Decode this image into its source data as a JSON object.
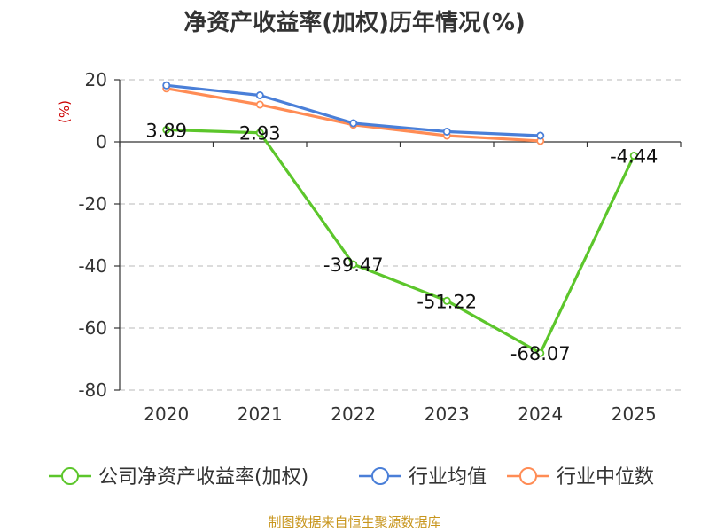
{
  "chart_data": {
    "type": "line",
    "title": "净资产收益率(加权)历年情况(%)",
    "unit_label": "(%)",
    "categories": [
      "2020",
      "2021",
      "2022",
      "2023",
      "2024",
      "2025"
    ],
    "ylim": [
      -80,
      20
    ],
    "yticks": [
      20,
      0,
      -20,
      -40,
      -60,
      -80
    ],
    "ytick_labels": [
      "20",
      "0",
      "-20",
      "-40",
      "-60",
      "-80"
    ],
    "grid": true,
    "legend_position": "bottom",
    "series": [
      {
        "name": "公司净资产收益率(加权)",
        "color": "#5cc62b",
        "values": [
          3.89,
          2.93,
          -39.47,
          -51.22,
          -68.07,
          -4.44
        ],
        "labels": [
          "3.89",
          "2.93",
          "-39.47",
          "-51.22",
          "-68.07",
          "-4.44"
        ]
      },
      {
        "name": "行业均值",
        "color": "#4a7fd8",
        "values": [
          18.2,
          15.0,
          6.0,
          3.3,
          2.0,
          null
        ]
      },
      {
        "name": "行业中位数",
        "color": "#ff8c55",
        "values": [
          17.2,
          12.0,
          5.5,
          2.0,
          0.3,
          null
        ]
      }
    ]
  },
  "source_text": "制图数据来自恒生聚源数据库"
}
